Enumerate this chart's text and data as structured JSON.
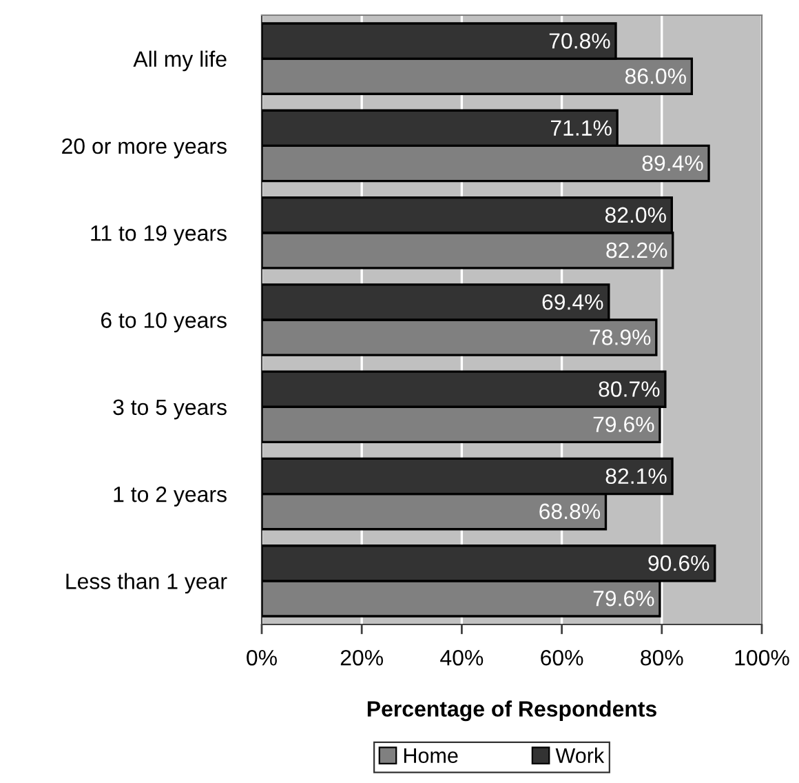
{
  "chart_data": {
    "type": "bar",
    "orientation": "horizontal",
    "categories": [
      "All my life",
      "20 or more years",
      "11 to 19 years",
      "6 to 10 years",
      "3 to 5 years",
      "1 to 2 years",
      "Less than 1 year"
    ],
    "series": [
      {
        "name": "Home",
        "color": "#808080",
        "values": [
          86.0,
          89.4,
          82.2,
          78.9,
          79.6,
          68.8,
          79.6
        ],
        "value_labels": [
          "86.0%",
          "89.4%",
          "82.2%",
          "78.9%",
          "79.6%",
          "68.8%",
          "79.6%"
        ]
      },
      {
        "name": "Work",
        "color": "#333333",
        "values": [
          70.8,
          71.1,
          82.0,
          69.4,
          80.7,
          82.1,
          90.6
        ],
        "value_labels": [
          "70.8%",
          "71.1%",
          "82.0%",
          "69.4%",
          "80.7%",
          "82.1%",
          "90.6%"
        ]
      }
    ],
    "xlabel": "Percentage of Respondents",
    "xlim": [
      0,
      100
    ],
    "xticks": [
      {
        "value": 0,
        "label": "0%"
      },
      {
        "value": 20,
        "label": "20%"
      },
      {
        "value": 40,
        "label": "40%"
      },
      {
        "value": 60,
        "label": "60%"
      },
      {
        "value": 80,
        "label": "80%"
      },
      {
        "value": 100,
        "label": "100%"
      }
    ],
    "grid": "x",
    "legend": "bottom"
  }
}
